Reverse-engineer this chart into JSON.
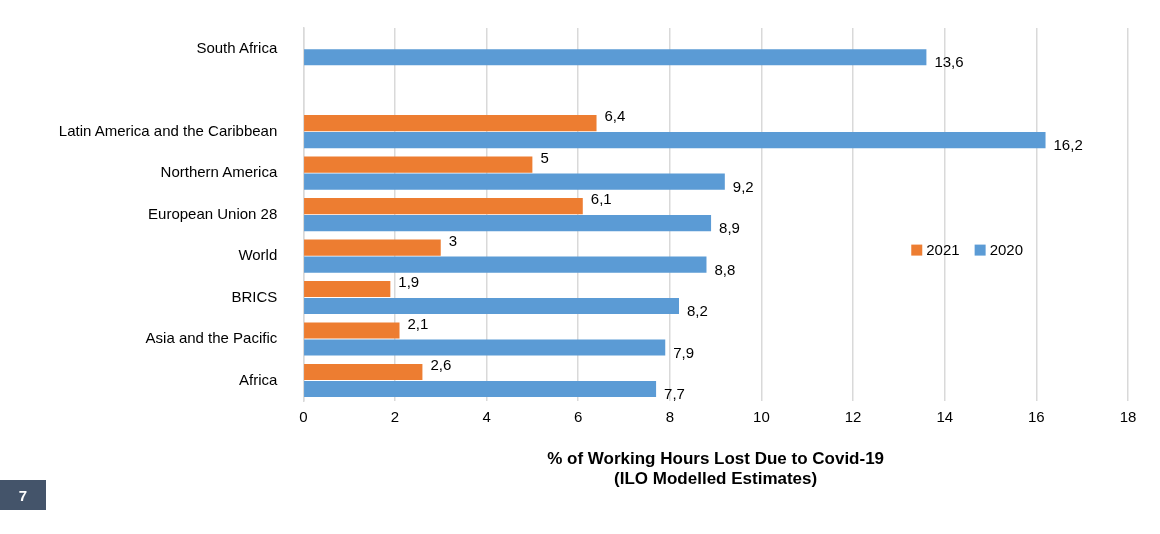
{
  "chart_data": {
    "type": "bar",
    "orientation": "horizontal",
    "xlabel": "% of Working Hours Lost Due to Covid-19\n(ILO Modelled Estimates)",
    "categories": [
      "South Africa",
      null,
      "Latin America and the Caribbean",
      "Northern America",
      "European Union 28",
      "World",
      "BRICS",
      "Asia and the Pacific",
      "Africa"
    ],
    "series": [
      {
        "name": "2021",
        "color": "#ed7d31",
        "values": [
          null,
          null,
          6.4,
          5,
          6.1,
          3,
          1.9,
          2.1,
          2.6
        ],
        "value_labels": [
          null,
          null,
          "6,4",
          "5",
          "6,1",
          "3",
          "1,9",
          "2,1",
          "2,6"
        ]
      },
      {
        "name": "2020",
        "color": "#5b9bd5",
        "values": [
          13.6,
          null,
          16.2,
          9.2,
          8.9,
          8.8,
          8.2,
          7.9,
          7.7
        ],
        "value_labels": [
          "13,6",
          null,
          "16,2",
          "9,2",
          "8,9",
          "8,8",
          "8,2",
          "7,9",
          "7,7"
        ]
      }
    ],
    "xlim": [
      0,
      18
    ],
    "xticks": [
      0,
      2,
      4,
      6,
      8,
      10,
      12,
      14,
      16,
      18
    ],
    "grid": "x",
    "legend": "right",
    "annotations": [
      "7"
    ]
  }
}
